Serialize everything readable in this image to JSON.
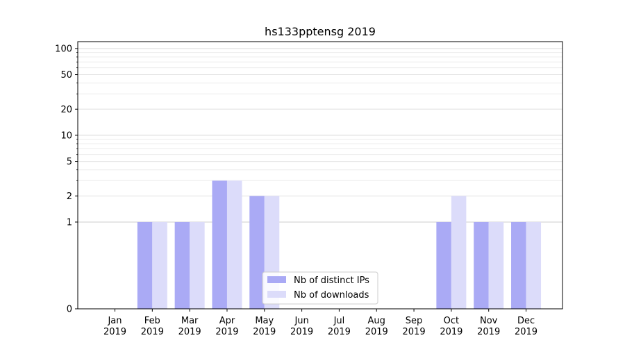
{
  "chart_data": {
    "type": "bar",
    "title": "hs133pptensg 2019",
    "xlabel": "",
    "ylabel": "",
    "categories": [
      "Jan\n2019",
      "Feb\n2019",
      "Mar\n2019",
      "Apr\n2019",
      "May\n2019",
      "Jun\n2019",
      "Jul\n2019",
      "Aug\n2019",
      "Sep\n2019",
      "Oct\n2019",
      "Nov\n2019",
      "Dec\n2019"
    ],
    "series": [
      {
        "name": "Nb of distinct IPs",
        "values": [
          0,
          1,
          1,
          3,
          2,
          0,
          0,
          0,
          0,
          1,
          1,
          1
        ],
        "color": "#aaaaf5"
      },
      {
        "name": "Nb of downloads",
        "values": [
          0,
          1,
          1,
          3,
          2,
          0,
          0,
          0,
          0,
          2,
          1,
          1
        ],
        "color": "#dcdcfa"
      }
    ],
    "y_scale": "symlog",
    "ylim": [
      0,
      120
    ],
    "yticks": [
      0,
      1,
      2,
      5,
      10,
      20,
      50,
      100
    ],
    "ytick_labels": [
      "0",
      "1",
      "2",
      "5",
      "10",
      "20",
      "50",
      "100"
    ],
    "grid": true,
    "legend_position": "bottom-center"
  }
}
